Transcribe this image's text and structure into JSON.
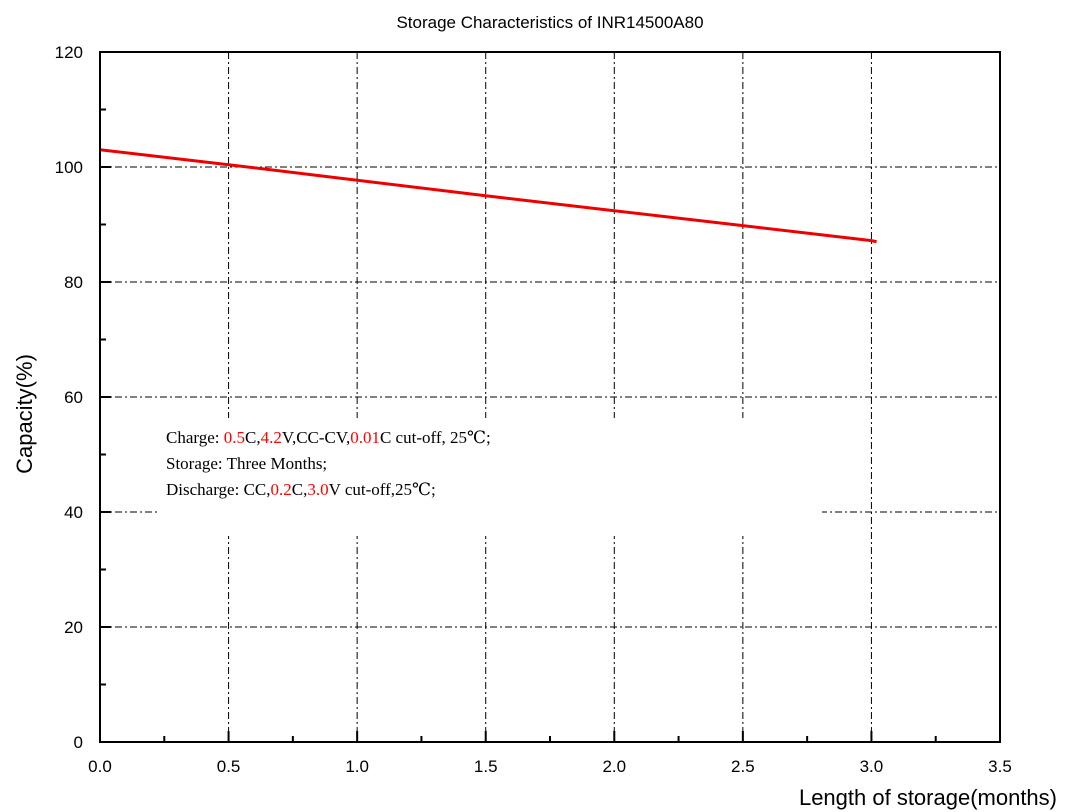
{
  "chart_data": {
    "type": "line",
    "title": "Storage Characteristics of INR14500A80",
    "xlabel": "Length of storage(months)",
    "ylabel": "Capacity(%)",
    "xlim": [
      0,
      3.5
    ],
    "ylim": [
      0,
      120
    ],
    "x_ticks": [
      "0.0",
      "0.5",
      "1.0",
      "1.5",
      "2.0",
      "2.5",
      "3.0",
      "3.5"
    ],
    "y_ticks": [
      "0",
      "20",
      "40",
      "60",
      "80",
      "100",
      "120"
    ],
    "grid": true,
    "series": [
      {
        "color": "#ee0000",
        "x": [
          0.0,
          0.5,
          1.0,
          1.5,
          2.0,
          2.5,
          3.0,
          3.02
        ],
        "y": [
          103.0,
          100.4,
          97.7,
          95.0,
          92.4,
          89.8,
          87.2,
          87.0
        ]
      }
    ],
    "annotation_lines": [
      [
        {
          "text": "Charge: ",
          "color": "#000000"
        },
        {
          "text": "0.5",
          "color": "#ff0000"
        },
        {
          "text": "C,",
          "color": "#000000"
        },
        {
          "text": "4.2",
          "color": "#ff0000"
        },
        {
          "text": "V,CC-CV,",
          "color": "#000000"
        },
        {
          "text": "0.01",
          "color": "#ff0000"
        },
        {
          "text": "C cut-off, 25℃;",
          "color": "#000000"
        }
      ],
      [
        {
          "text": "Storage: Three Months;",
          "color": "#000000"
        }
      ],
      [
        {
          "text": "Discharge: CC,",
          "color": "#000000"
        },
        {
          "text": "0.2",
          "color": "#ff0000"
        },
        {
          "text": "C,",
          "color": "#000000"
        },
        {
          "text": "3.0",
          "color": "#ff0000"
        },
        {
          "text": "V cut-off,25℃;",
          "color": "#000000"
        }
      ]
    ]
  }
}
